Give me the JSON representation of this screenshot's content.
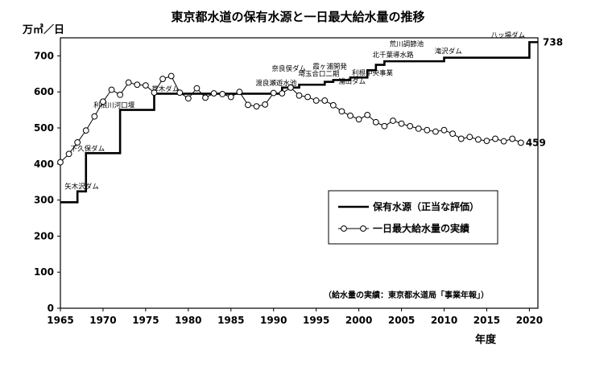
{
  "chart_data": {
    "type": "line",
    "title": "東京都水道の保有水源と一日最大給水量の推移",
    "ylabel": "万㎥／日",
    "xlabel": "年度",
    "xlim": [
      1965,
      2021
    ],
    "ylim": [
      0,
      750
    ],
    "x_ticks": [
      1965,
      1970,
      1975,
      1980,
      1985,
      1990,
      1995,
      2000,
      2005,
      2010,
      2015,
      2020
    ],
    "y_ticks": [
      0,
      100,
      200,
      300,
      400,
      500,
      600,
      700
    ],
    "grid": false,
    "legend": "center-right",
    "note": "（給水量の実績：東京都水道局「事業年報」）",
    "series": [
      {
        "name": "保有水源（正当な評価）",
        "style": "step",
        "color": "#000000",
        "x": [
          1965,
          1967,
          1968,
          1972,
          1976,
          1991,
          1993,
          1996,
          1997,
          1999,
          2001,
          2002,
          2003,
          2010,
          2020,
          2021
        ],
        "values": [
          294,
          324,
          430,
          550,
          595,
          612,
          620,
          628,
          633,
          640,
          660,
          675,
          685,
          695,
          738,
          738
        ],
        "end_label": "738"
      },
      {
        "name": "一日最大給水量の実績",
        "style": "line-marker",
        "color": "#000000",
        "x": [
          1965,
          1966,
          1967,
          1968,
          1969,
          1970,
          1971,
          1972,
          1973,
          1974,
          1975,
          1976,
          1977,
          1978,
          1979,
          1980,
          1981,
          1982,
          1983,
          1984,
          1985,
          1986,
          1987,
          1988,
          1989,
          1990,
          1991,
          1992,
          1993,
          1994,
          1995,
          1996,
          1997,
          1998,
          1999,
          2000,
          2001,
          2002,
          2003,
          2004,
          2005,
          2006,
          2007,
          2008,
          2009,
          2010,
          2011,
          2012,
          2013,
          2014,
          2015,
          2016,
          2017,
          2018,
          2019
        ],
        "values": [
          405,
          428,
          460,
          493,
          532,
          573,
          606,
          592,
          626,
          620,
          618,
          598,
          636,
          644,
          598,
          582,
          610,
          584,
          596,
          594,
          586,
          600,
          564,
          560,
          565,
          597,
          596,
          612,
          590,
          586,
          576,
          576,
          563,
          546,
          534,
          524,
          536,
          516,
          505,
          520,
          512,
          505,
          498,
          494,
          490,
          494,
          484,
          470,
          475,
          468,
          464,
          470,
          463,
          470,
          459
        ],
        "end_label": "459"
      }
    ],
    "annotations": [
      {
        "text": "矢木沢ダム",
        "x": 1967.5,
        "y": 325
      },
      {
        "text": "下久保ダム",
        "x": 1968.2,
        "y": 430
      },
      {
        "text": "利根川河口堰",
        "x": 1971.3,
        "y": 550
      },
      {
        "text": "草木ダム",
        "x": 1977.3,
        "y": 595
      },
      {
        "text": "渡良瀬遊水池",
        "x": 1990.3,
        "y": 612
      },
      {
        "text": "奈良俣ダム",
        "x": 1991.8,
        "y": 652
      },
      {
        "text": "霞ヶ浦開発",
        "x": 1996.6,
        "y": 657
      },
      {
        "text": "埼玉合口二期",
        "x": 1995.3,
        "y": 637
      },
      {
        "text": "利根中央事業",
        "x": 2001.6,
        "y": 640
      },
      {
        "text": "浦山ダム",
        "x": 1999.2,
        "y": 616
      },
      {
        "text": "荒川調節池",
        "x": 2005.6,
        "y": 720
      },
      {
        "text": "北千葉導水路",
        "x": 2004.0,
        "y": 690
      },
      {
        "text": "滝沢ダム",
        "x": 2010.5,
        "y": 700
      },
      {
        "text": "八ッ場ダム",
        "x": 2017.5,
        "y": 744
      }
    ]
  }
}
